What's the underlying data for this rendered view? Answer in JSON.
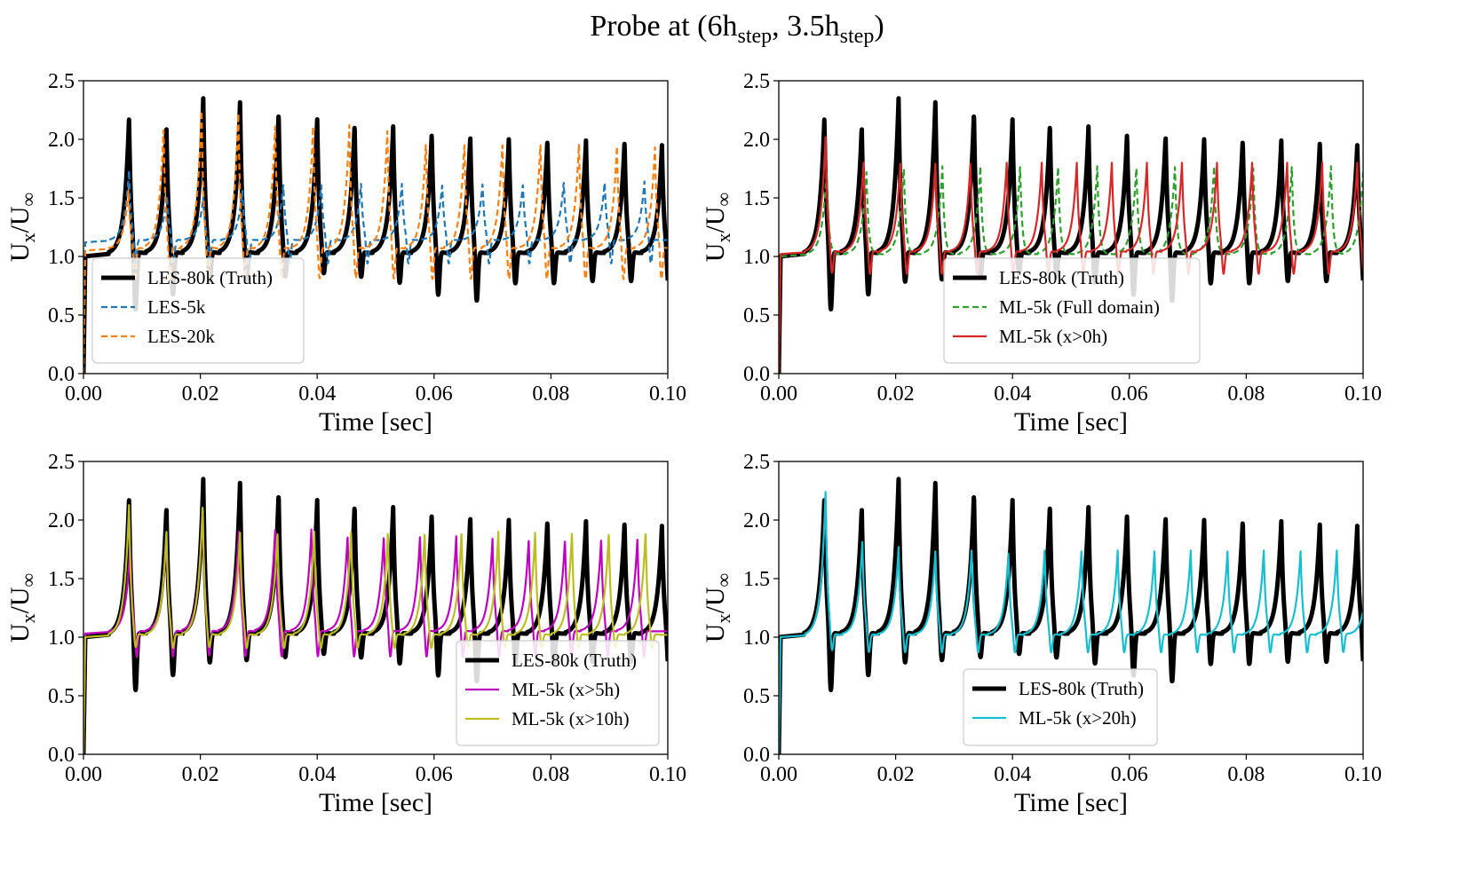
{
  "title": {
    "prefix": "Probe at (6h",
    "sub1": "step",
    "mid": ", 3.5h",
    "sub2": "step",
    "suffix": ")"
  },
  "chart_data": [
    {
      "type": "line",
      "panel": "top-left",
      "xlabel": "Time [sec]",
      "ylabel": {
        "u": "U",
        "sub1": "x",
        "slash": "/U",
        "sub2": "∞"
      },
      "xlim": [
        0,
        0.1
      ],
      "ylim": [
        0,
        2.5
      ],
      "xticks": [
        "0.00",
        "0.02",
        "0.04",
        "0.06",
        "0.08",
        "0.10"
      ],
      "yticks": [
        "0.0",
        "0.5",
        "1.0",
        "1.5",
        "2.0",
        "2.5"
      ],
      "legend_position": "lower-left",
      "series": [
        {
          "name": "LES-80k (Truth)",
          "color": "#000000",
          "dash": "solid",
          "width": 5,
          "model": "truth"
        },
        {
          "name": "LES-5k",
          "color": "#1f77b4",
          "dash": "dashed",
          "width": 2.2,
          "model": "sim",
          "peaks": [
            0.0078,
            0.0143,
            0.0205,
            0.0272,
            0.0342,
            0.0407,
            0.0475,
            0.0545,
            0.0614,
            0.0683,
            0.0752,
            0.0822,
            0.0892,
            0.096
          ],
          "amps": [
            1.72,
            1.5,
            1.48,
            1.55,
            1.6,
            1.6,
            1.6,
            1.6,
            1.6,
            1.6,
            1.6,
            1.62,
            1.62,
            1.62
          ],
          "base": 1.12,
          "dip": 0.9
        },
        {
          "name": "LES-20k",
          "color": "#ff7f0e",
          "dash": "dashed",
          "width": 2.2,
          "model": "sim",
          "peaks": [
            0.0077,
            0.0137,
            0.0202,
            0.0265,
            0.0328,
            0.0393,
            0.0455,
            0.052,
            0.0586,
            0.0652,
            0.0717,
            0.0782,
            0.0848,
            0.0913,
            0.0978
          ],
          "amps": [
            1.55,
            2.08,
            2.25,
            2.2,
            2.1,
            2.1,
            2.1,
            2.05,
            1.95,
            1.95,
            1.95,
            1.95,
            1.95,
            1.93,
            1.92
          ],
          "base": 1.05,
          "dip": 0.75
        }
      ]
    },
    {
      "type": "line",
      "panel": "top-right",
      "xlabel": "Time [sec]",
      "ylabel": {
        "u": "U",
        "sub1": "x",
        "slash": "/U",
        "sub2": "∞"
      },
      "xlim": [
        0,
        0.1
      ],
      "ylim": [
        0,
        2.5
      ],
      "xticks": [
        "0.00",
        "0.02",
        "0.04",
        "0.06",
        "0.08",
        "0.10"
      ],
      "yticks": [
        "0.0",
        "0.5",
        "1.0",
        "1.5",
        "2.0",
        "2.5"
      ],
      "legend_position": "lower-center",
      "series": [
        {
          "name": "LES-80k (Truth)",
          "color": "#000000",
          "dash": "solid",
          "width": 5,
          "model": "truth"
        },
        {
          "name": "ML-5k (Full domain)",
          "color": "#2ca02c",
          "dash": "dashed",
          "width": 2.2,
          "model": "sim",
          "peaks": [
            0.0082,
            0.015,
            0.0214,
            0.028,
            0.0345,
            0.0413,
            0.0478,
            0.0545,
            0.0612,
            0.0678,
            0.0745,
            0.0812,
            0.0878,
            0.0945,
            0.1
          ],
          "amps": [
            1.72,
            1.7,
            1.75,
            1.75,
            1.75,
            1.75,
            1.75,
            1.75,
            1.75,
            1.75,
            1.75,
            1.75,
            1.75,
            1.75,
            1.7
          ],
          "base": 1.0,
          "dip": 1.0
        },
        {
          "name": "ML-5k (x>0h)",
          "color": "#d62728",
          "dash": "solid",
          "width": 2.2,
          "model": "sim",
          "peaks": [
            0.008,
            0.0145,
            0.0208,
            0.0268,
            0.0328,
            0.039,
            0.045,
            0.051,
            0.057,
            0.063,
            0.069,
            0.075,
            0.081,
            0.087,
            0.093,
            0.099
          ],
          "amps": [
            2.0,
            1.78,
            1.78,
            1.78,
            1.78,
            1.78,
            1.78,
            1.78,
            1.78,
            1.78,
            1.78,
            1.78,
            1.78,
            1.78,
            1.78,
            1.78
          ],
          "base": 1.02,
          "dip": 0.8
        }
      ]
    },
    {
      "type": "line",
      "panel": "bottom-left",
      "xlabel": "Time [sec]",
      "ylabel": {
        "u": "U",
        "sub1": "x",
        "slash": "/U",
        "sub2": "∞"
      },
      "xlim": [
        0,
        0.1
      ],
      "ylim": [
        0,
        2.5
      ],
      "xticks": [
        "0.00",
        "0.02",
        "0.04",
        "0.06",
        "0.08",
        "0.10"
      ],
      "yticks": [
        "0.0",
        "0.5",
        "1.0",
        "1.5",
        "2.0",
        "2.5"
      ],
      "legend_position": "lower-right",
      "series": [
        {
          "name": "LES-80k (Truth)",
          "color": "#000000",
          "dash": "solid",
          "width": 5,
          "model": "truth"
        },
        {
          "name": "ML-5k (x>5h)",
          "color": "#bf00bf",
          "dash": "solid",
          "width": 2.2,
          "model": "sim",
          "peaks": [
            0.008,
            0.0142,
            0.0204,
            0.0266,
            0.0328,
            0.039,
            0.0452,
            0.0514,
            0.0576,
            0.0638,
            0.07,
            0.0762,
            0.0824,
            0.0886,
            0.0948
          ],
          "amps": [
            1.75,
            1.85,
            2.1,
            1.9,
            1.9,
            1.9,
            1.85,
            1.85,
            1.85,
            1.85,
            1.82,
            1.82,
            1.82,
            1.82,
            1.82
          ],
          "base": 1.03,
          "dip": 0.78
        },
        {
          "name": "ML-5k (x>10h)",
          "color": "#bcbd22",
          "dash": "solid",
          "width": 2.2,
          "model": "sim",
          "peaks": [
            0.0078,
            0.0142,
            0.0204,
            0.0268,
            0.0332,
            0.0395,
            0.0458,
            0.0521,
            0.0584,
            0.0647,
            0.071,
            0.0773,
            0.0836,
            0.0899,
            0.0962
          ],
          "amps": [
            2.12,
            1.9,
            2.12,
            1.88,
            1.88,
            1.88,
            1.88,
            1.88,
            1.88,
            1.88,
            1.88,
            1.88,
            1.88,
            1.88,
            1.88
          ],
          "base": 1.0,
          "dip": 0.85
        }
      ]
    },
    {
      "type": "line",
      "panel": "bottom-right",
      "xlabel": "Time [sec]",
      "ylabel": {
        "u": "U",
        "sub1": "x",
        "slash": "/U",
        "sub2": "∞"
      },
      "xlim": [
        0,
        0.1
      ],
      "ylim": [
        0,
        2.5
      ],
      "xticks": [
        "0.00",
        "0.02",
        "0.04",
        "0.06",
        "0.08",
        "0.10"
      ],
      "yticks": [
        "0.0",
        "0.5",
        "1.0",
        "1.5",
        "2.0",
        "2.5"
      ],
      "legend_position": "lower-center",
      "series": [
        {
          "name": "LES-80k (Truth)",
          "color": "#000000",
          "dash": "solid",
          "width": 5,
          "model": "truth"
        },
        {
          "name": "ML-5k (x>20h)",
          "color": "#17becf",
          "dash": "solid",
          "width": 2.2,
          "model": "sim",
          "peaks": [
            0.008,
            0.0143,
            0.0205,
            0.0268,
            0.033,
            0.0393,
            0.0455,
            0.0518,
            0.058,
            0.0643,
            0.0705,
            0.0768,
            0.083,
            0.0893,
            0.0955,
            0.1
          ],
          "amps": [
            2.22,
            1.8,
            1.75,
            1.72,
            1.72,
            1.7,
            1.72,
            1.72,
            1.72,
            1.72,
            1.72,
            1.72,
            1.72,
            1.72,
            1.72,
            1.2
          ],
          "base": 1.0,
          "dip": 0.82
        }
      ]
    }
  ]
}
